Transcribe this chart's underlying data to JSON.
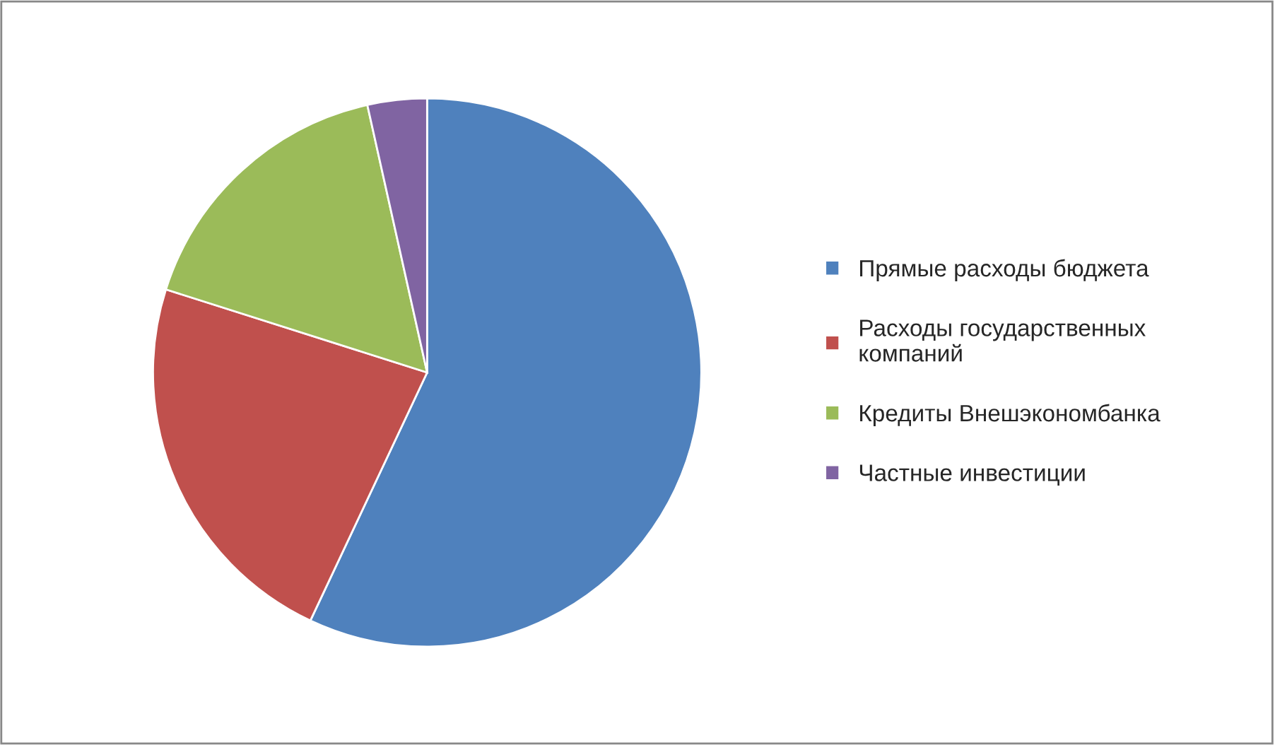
{
  "chart_data": {
    "type": "pie",
    "categories": [
      "Прямые расходы бюджета",
      "Расходы государственных\nкомпаний",
      "Кредиты Внешэкономбанка",
      "Частные инвестиции"
    ],
    "values": [
      57.0,
      22.9,
      16.6,
      3.5
    ],
    "colors": [
      "#4f81bd",
      "#c0504d",
      "#9bbb59",
      "#8064a2"
    ],
    "legend": "right"
  }
}
